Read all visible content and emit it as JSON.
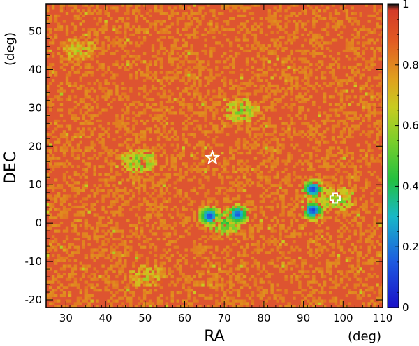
{
  "chart_data": {
    "type": "heatmap",
    "title": "",
    "xlabel": "RA",
    "xunit": "(deg)",
    "ylabel": "DEC",
    "yunit": "(deg)",
    "xlim": [
      25,
      110
    ],
    "ylim": [
      -22,
      57
    ],
    "xticks": [
      30,
      40,
      50,
      60,
      70,
      80,
      90,
      100,
      110
    ],
    "yticks": [
      -20,
      -10,
      0,
      10,
      20,
      30,
      40,
      50
    ],
    "colorbar": {
      "range": [
        0,
        1
      ],
      "ticks": [
        "0",
        "0.2",
        "0.4",
        "0.6",
        "0.8",
        "1"
      ],
      "colormap": "rainbow"
    },
    "background_value": 0.9,
    "low_value_regions": [
      {
        "ra": 66.0,
        "dec": 1.5,
        "value": 0.05
      },
      {
        "ra": 73.0,
        "dec": 2.0,
        "value": 0.08
      },
      {
        "ra": 92.0,
        "dec": 8.5,
        "value": 0.05
      },
      {
        "ra": 92.0,
        "dec": 3.0,
        "value": 0.05
      }
    ],
    "medium_value_regions": [
      {
        "ra": 98.0,
        "dec": 6.0,
        "value": 0.55
      },
      {
        "ra": 48.0,
        "dec": 16.0,
        "value": 0.55
      },
      {
        "ra": 70.0,
        "dec": 0.0,
        "value": 0.5
      },
      {
        "ra": 50.0,
        "dec": -14.0,
        "value": 0.65
      },
      {
        "ra": 74.0,
        "dec": 29.0,
        "value": 0.55
      },
      {
        "ra": 33.0,
        "dec": 45.0,
        "value": 0.65
      }
    ],
    "markers": [
      {
        "shape": "star",
        "ra": 67.0,
        "dec": 17.0
      },
      {
        "shape": "cross",
        "ra": 98.0,
        "dec": 6.5
      }
    ]
  }
}
